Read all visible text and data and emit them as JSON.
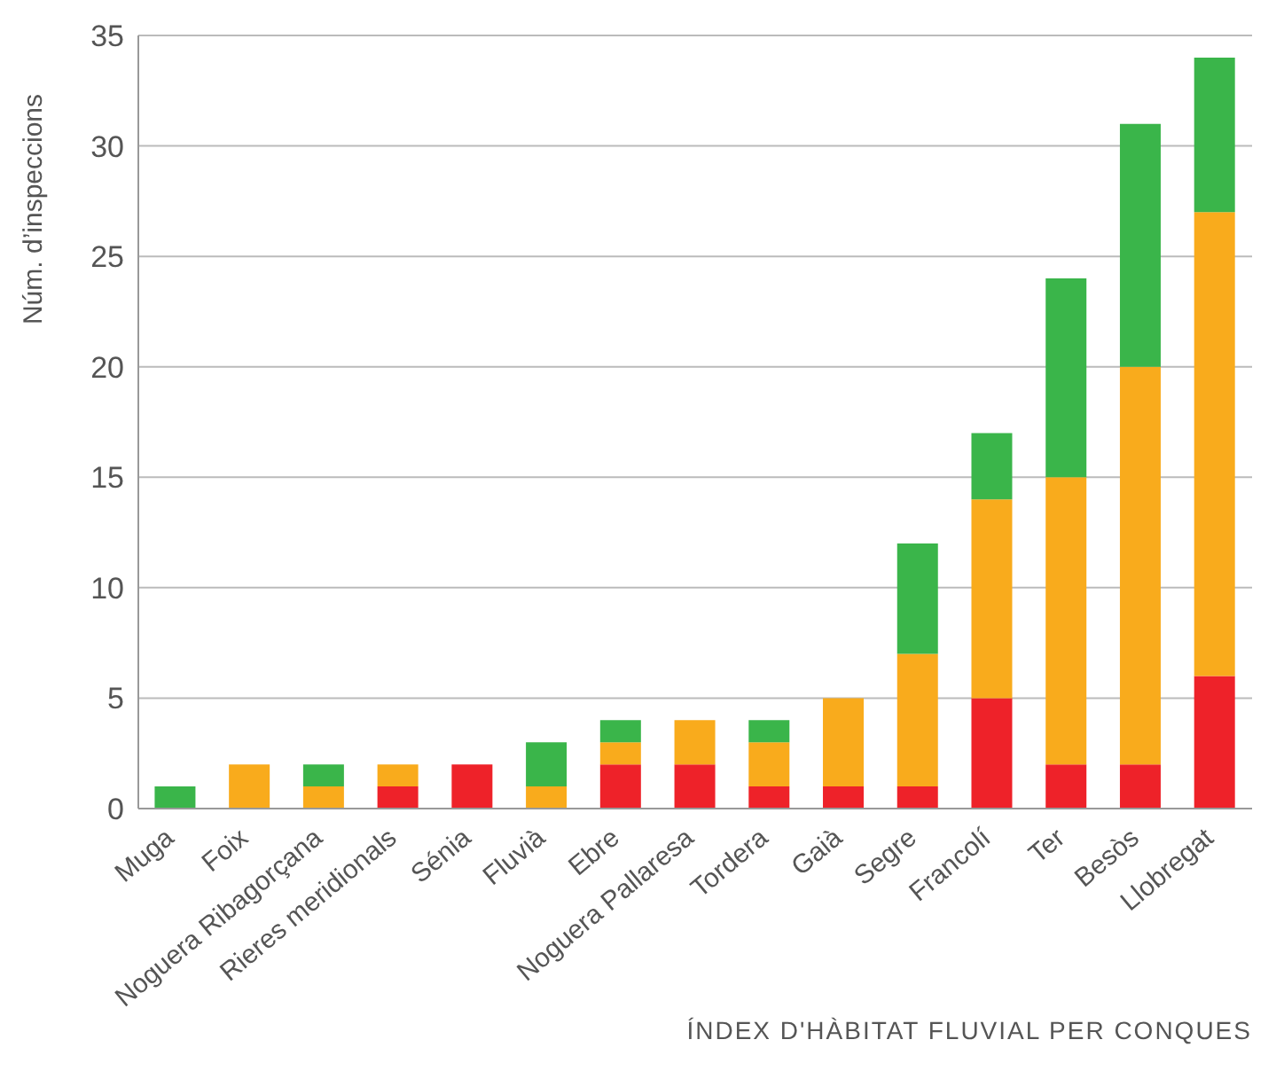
{
  "chart_data": {
    "type": "bar",
    "stacked": true,
    "ylabel": "Núm. d’inspeccions",
    "xlabel": "ÍNDEX D'HÀBITAT FLUVIAL PER CONQUES",
    "categories": [
      "Muga",
      "Foix",
      "Noguera Ribagorçana",
      "Rieres meridionals",
      "Sénia",
      "Fluvià",
      "Ebre",
      "Noguera Pallaresa",
      "Tordera",
      "Gaià",
      "Segre",
      "Francolí",
      "Ter",
      "Besòs",
      "Llobregat"
    ],
    "series": [
      {
        "color": "#ee2229",
        "values": [
          0,
          0,
          0,
          1,
          2,
          0,
          2,
          2,
          1,
          1,
          1,
          5,
          2,
          2,
          6
        ]
      },
      {
        "color": "#f9ab1c",
        "values": [
          0,
          2,
          1,
          1,
          0,
          1,
          1,
          2,
          2,
          4,
          6,
          9,
          13,
          18,
          21
        ]
      },
      {
        "color": "#3ab54a",
        "values": [
          1,
          0,
          1,
          0,
          0,
          2,
          1,
          0,
          1,
          0,
          5,
          3,
          9,
          11,
          7
        ]
      }
    ],
    "ylim": [
      0,
      35
    ],
    "yticks": [
      0,
      5,
      10,
      15,
      20,
      25,
      30,
      35
    ],
    "grid": "y",
    "legend": false
  }
}
